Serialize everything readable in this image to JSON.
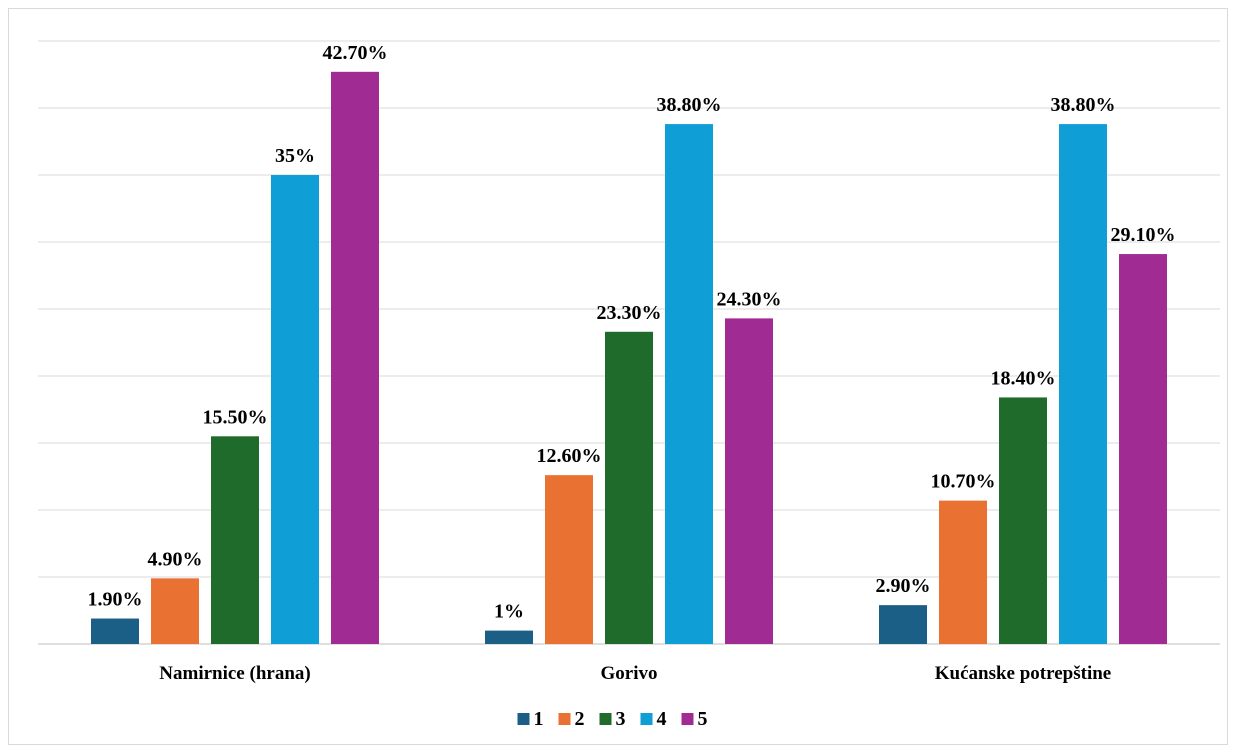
{
  "chart_data": {
    "type": "bar",
    "categories": [
      "Namirnice (hrana)",
      "Gorivo",
      "Kućanske potrepštine"
    ],
    "series": [
      {
        "name": "1",
        "color": "#1b5f86",
        "values": [
          1.9,
          1.0,
          2.9
        ],
        "labels": [
          "1.90%",
          "1%",
          "2.90%"
        ]
      },
      {
        "name": "2",
        "color": "#e97132",
        "values": [
          4.9,
          12.6,
          10.7
        ],
        "labels": [
          "4.90%",
          "12.60%",
          "10.70%"
        ]
      },
      {
        "name": "3",
        "color": "#1e6b2b",
        "values": [
          15.5,
          23.3,
          18.4
        ],
        "labels": [
          "15.50%",
          "23.30%",
          "18.40%"
        ]
      },
      {
        "name": "4",
        "color": "#0f9ed5",
        "values": [
          35.0,
          38.8,
          38.8
        ],
        "labels": [
          "35%",
          "38.80%",
          "38.80%"
        ]
      },
      {
        "name": "5",
        "color": "#a02b93",
        "values": [
          42.7,
          24.3,
          29.1
        ],
        "labels": [
          "42.70%",
          "24.30%",
          "29.10%"
        ]
      }
    ],
    "ylim": [
      0,
      45
    ],
    "grid": true,
    "legend": "bottom"
  }
}
